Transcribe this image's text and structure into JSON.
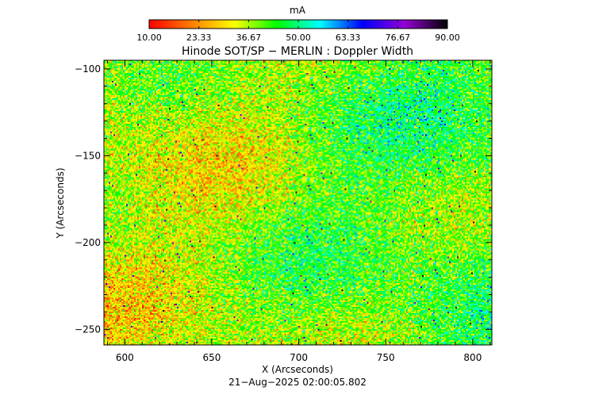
{
  "chart_data": {
    "type": "heatmap",
    "title": "Hinode SOT/SP − MERLIN : Doppler Width",
    "xlabel": "X (Arcseconds)",
    "ylabel": "Y (Arcseconds)",
    "timestamp": "21−Aug−2025 02:00:05.802",
    "xlim": [
      588,
      811
    ],
    "ylim": [
      -259,
      -95
    ],
    "x_ticks": [
      600,
      650,
      700,
      750,
      800
    ],
    "x_tick_labels": [
      "600",
      "650",
      "700",
      "750",
      "800"
    ],
    "y_ticks": [
      -100,
      -150,
      -200,
      -250
    ],
    "y_tick_labels": [
      "−100",
      "−150",
      "−200",
      "−250"
    ],
    "colorbar": {
      "label": "mA",
      "range": [
        10,
        90
      ],
      "tick_labels": [
        "10.00",
        "23.33",
        "36.67",
        "50.00",
        "63.33",
        "76.67",
        "90.00"
      ],
      "colormap": [
        "#ff0000",
        "#ff7f00",
        "#ffff00",
        "#00ff00",
        "#00ffff",
        "#0000ff",
        "#9400d3",
        "#000000"
      ]
    },
    "field_summary": {
      "typical_range": [
        25,
        55
      ],
      "left_half_mean": 35,
      "right_half_mean": 43,
      "scattered_high_values": "blue/purple pixels occur sparsely"
    },
    "grid": false
  }
}
